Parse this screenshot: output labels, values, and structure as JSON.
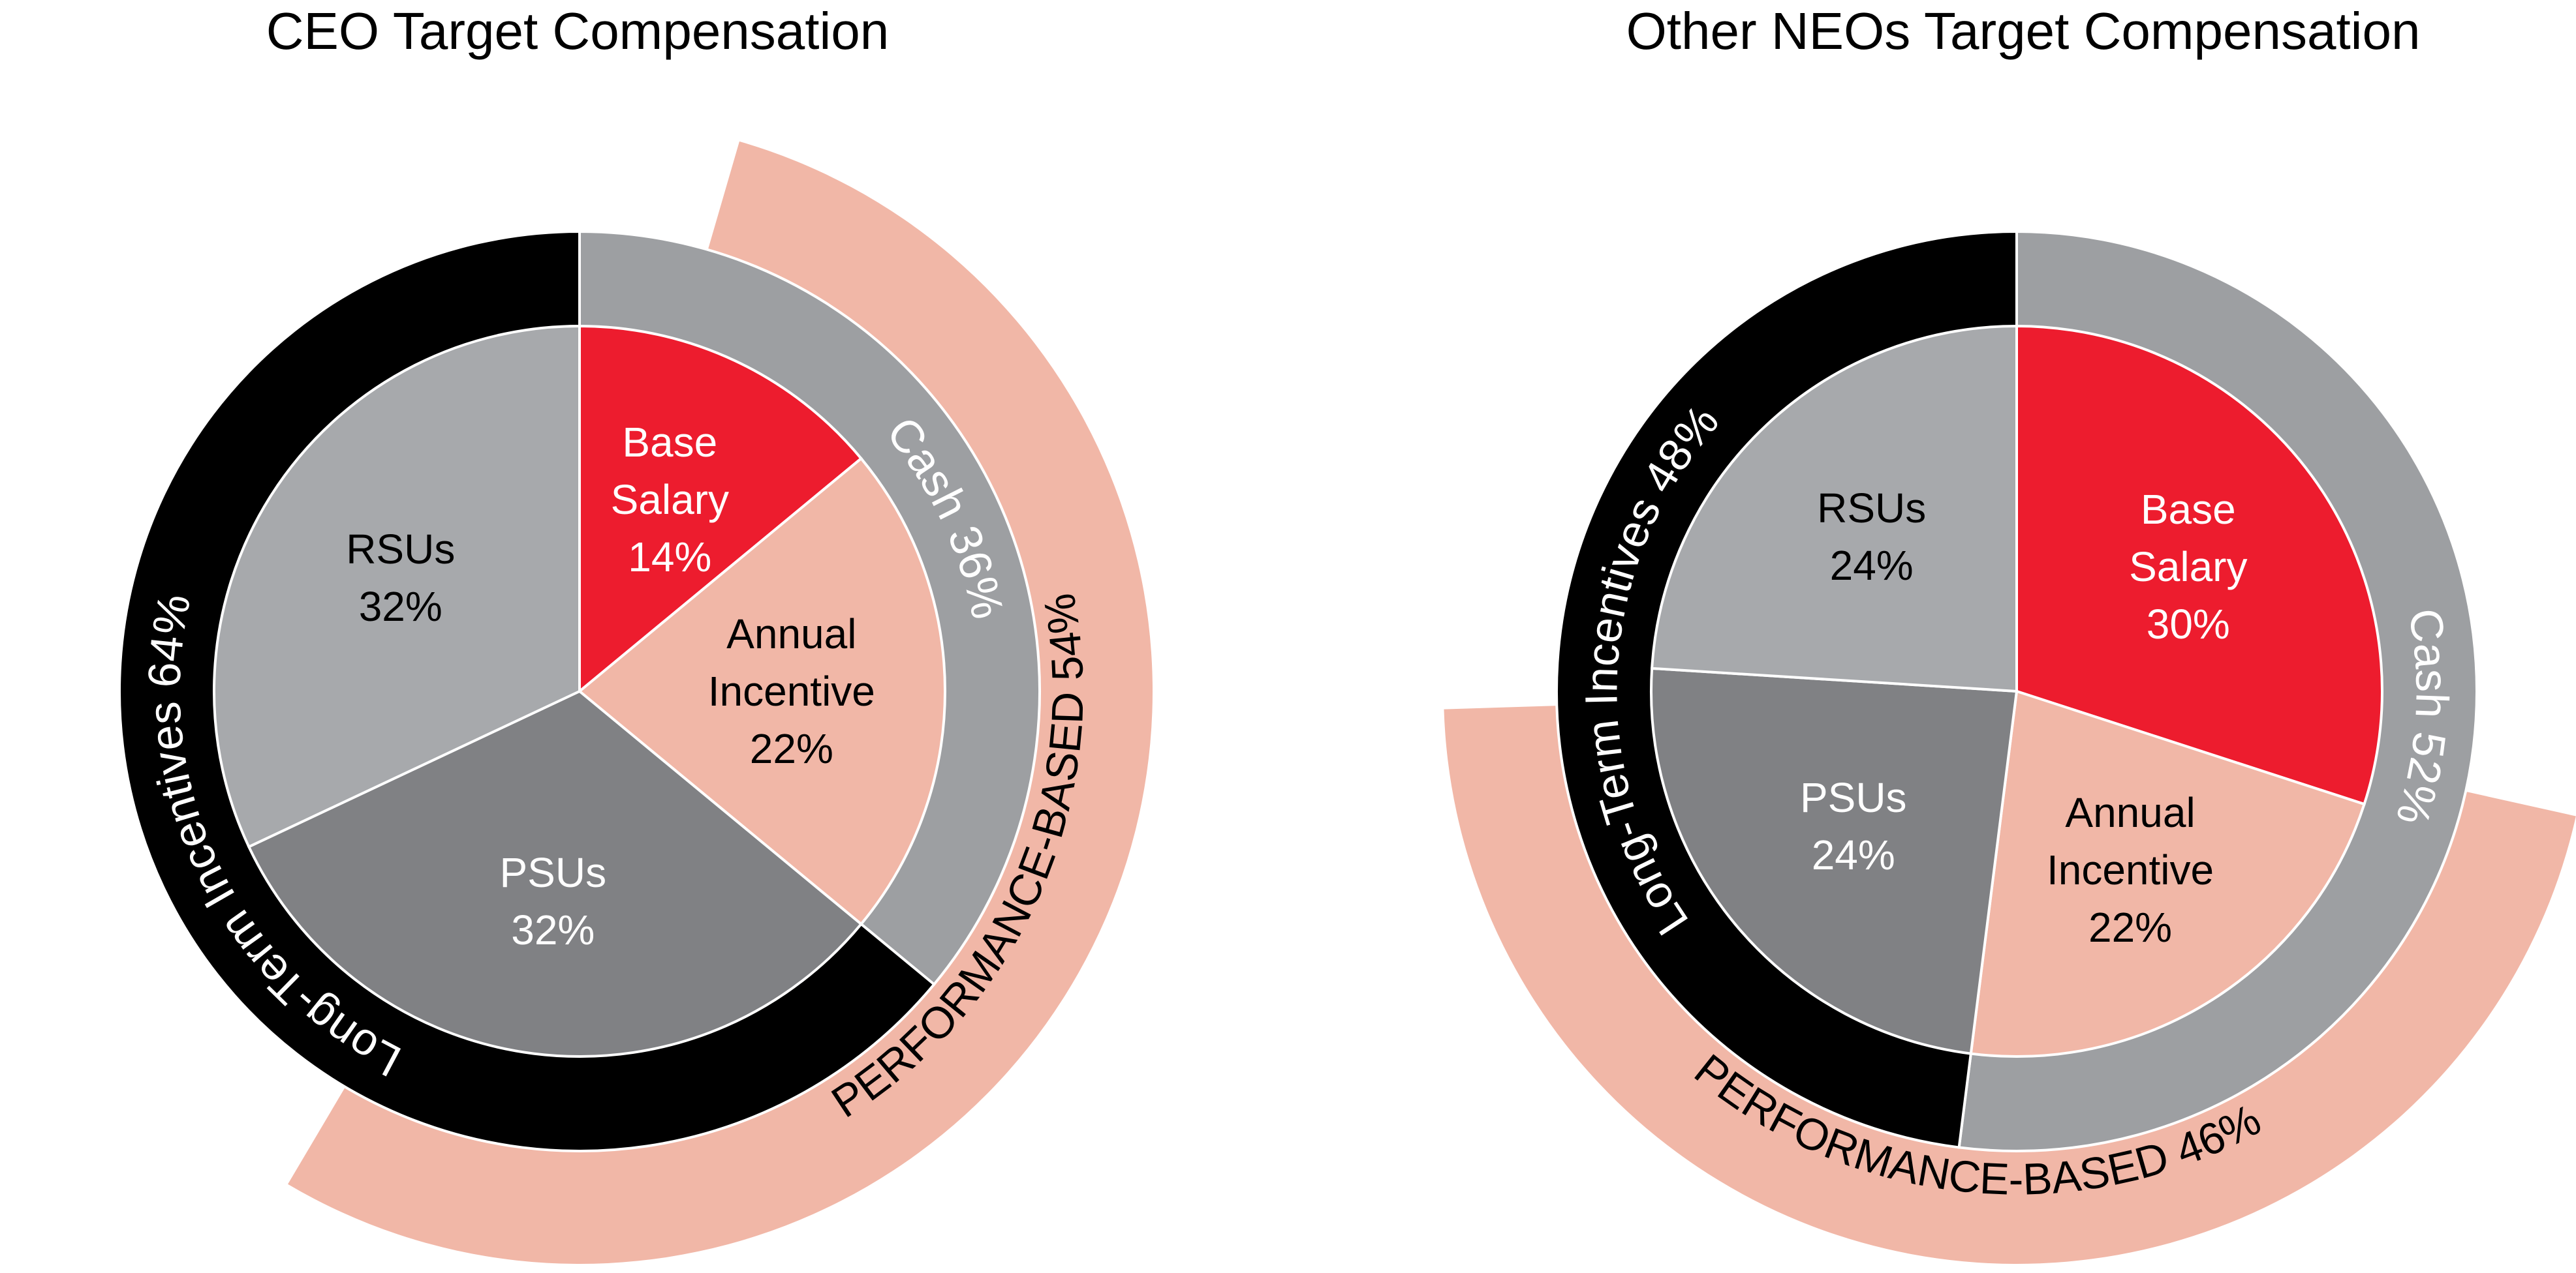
{
  "chart_data": [
    {
      "type": "pie",
      "title": "CEO Target Compensation",
      "slices": [
        {
          "label": "Base Salary",
          "value": 14,
          "color": "#ED1C2E",
          "text_color": "#ffffff"
        },
        {
          "label": "Annual Incentive",
          "value": 22,
          "color": "#F1B7A7",
          "text_color": "#000000"
        },
        {
          "label": "PSUs",
          "value": 32,
          "color": "#808184",
          "text_color": "#ffffff"
        },
        {
          "label": "RSUs",
          "value": 32,
          "color": "#A7A9AC",
          "text_color": "#000000"
        }
      ],
      "rings": [
        {
          "label": "Cash 36%",
          "value": 36,
          "color": "#9D9FA2",
          "text_color": "#ffffff"
        },
        {
          "label": "Long-Term Incentives 64%",
          "value": 64,
          "color": "#000000",
          "text_color": "#ffffff"
        }
      ],
      "performance_band": {
        "label": "PERFORMANCE-BASED 54%",
        "value": 54,
        "color": "#F1B7A7"
      }
    },
    {
      "type": "pie",
      "title": "Other NEOs Target Compensation",
      "slices": [
        {
          "label": "Base Salary",
          "value": 30,
          "color": "#ED1C2E",
          "text_color": "#ffffff"
        },
        {
          "label": "Annual Incentive",
          "value": 22,
          "color": "#F1B7A7",
          "text_color": "#000000"
        },
        {
          "label": "PSUs",
          "value": 24,
          "color": "#808184",
          "text_color": "#ffffff"
        },
        {
          "label": "RSUs",
          "value": 24,
          "color": "#A7A9AC",
          "text_color": "#000000"
        }
      ],
      "rings": [
        {
          "label": "Cash 52%",
          "value": 52,
          "color": "#9D9FA2",
          "text_color": "#ffffff"
        },
        {
          "label": "Long-Term Incentives 48%",
          "value": 48,
          "color": "#000000",
          "text_color": "#ffffff"
        }
      ],
      "performance_band": {
        "label": "PERFORMANCE-BASED 46%",
        "value": 46,
        "color": "#F1B7A7"
      }
    }
  ]
}
